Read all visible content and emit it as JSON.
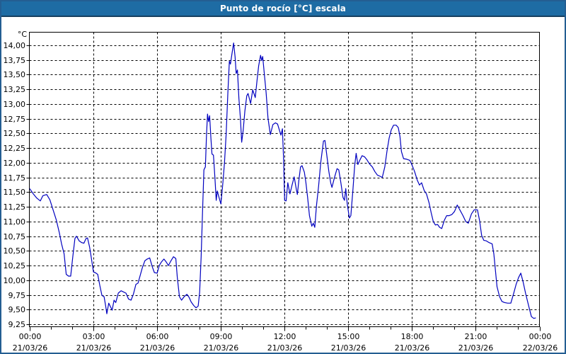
{
  "window": {
    "title": "Punto de rocío [°C] escala"
  },
  "colors": {
    "titlebar_bg": "#1e6ca4",
    "titlebar_text": "#ffffff",
    "window_border": "#245e92",
    "plot_border": "#000000",
    "gridline": "#000000",
    "series_line": "#0000bf",
    "label_text": "#000000",
    "background": "#ffffff"
  },
  "chart_data": {
    "type": "line",
    "title": "Punto de rocío [°C] escala",
    "unit_label": "°C",
    "grid": "dashed",
    "legend": "none",
    "ylim": [
      9.25,
      14.0
    ],
    "y_tick_step": 0.25,
    "y_ticks": [
      {
        "v": 14.0,
        "label": "14,00"
      },
      {
        "v": 13.75,
        "label": "13,75"
      },
      {
        "v": 13.5,
        "label": "13,50"
      },
      {
        "v": 13.25,
        "label": "13,25"
      },
      {
        "v": 13.0,
        "label": "13,00"
      },
      {
        "v": 12.75,
        "label": "12,75"
      },
      {
        "v": 12.5,
        "label": "12,50"
      },
      {
        "v": 12.25,
        "label": "12,25"
      },
      {
        "v": 12.0,
        "label": "12,00"
      },
      {
        "v": 11.75,
        "label": "11,75"
      },
      {
        "v": 11.5,
        "label": "11,50"
      },
      {
        "v": 11.25,
        "label": "11,25"
      },
      {
        "v": 11.0,
        "label": "11,00"
      },
      {
        "v": 10.75,
        "label": "10,75"
      },
      {
        "v": 10.5,
        "label": "10,50"
      },
      {
        "v": 10.25,
        "label": "10,25"
      },
      {
        "v": 10.0,
        "label": "10,00"
      },
      {
        "v": 9.75,
        "label": "9,75"
      },
      {
        "v": 9.5,
        "label": "9,50"
      },
      {
        "v": 9.25,
        "label": "9,25"
      }
    ],
    "x_range_hours": [
      0,
      24
    ],
    "x_minor_tick_hours": 1,
    "x_ticks": [
      {
        "h": 0,
        "time": "00:00",
        "date": "21/03/26"
      },
      {
        "h": 3,
        "time": "03:00",
        "date": "21/03/26"
      },
      {
        "h": 6,
        "time": "06:00",
        "date": "21/03/26"
      },
      {
        "h": 9,
        "time": "09:00",
        "date": "21/03/26"
      },
      {
        "h": 12,
        "time": "12:00",
        "date": "21/03/26"
      },
      {
        "h": 15,
        "time": "15:00",
        "date": "21/03/26"
      },
      {
        "h": 18,
        "time": "18:00",
        "date": "21/03/26"
      },
      {
        "h": 21,
        "time": "21:00",
        "date": "21/03/26"
      },
      {
        "h": 24,
        "time": "00:00",
        "date": "22/03/26"
      }
    ],
    "series": [
      {
        "name": "Punto de rocío",
        "color": "#0000bf",
        "points": [
          [
            0,
            11.56
          ],
          [
            0.17,
            11.47
          ],
          [
            0.33,
            11.4
          ],
          [
            0.5,
            11.35
          ],
          [
            0.62,
            11.44
          ],
          [
            0.8,
            11.46
          ],
          [
            0.95,
            11.37
          ],
          [
            1.1,
            11.2
          ],
          [
            1.25,
            11.03
          ],
          [
            1.4,
            10.8
          ],
          [
            1.5,
            10.62
          ],
          [
            1.62,
            10.45
          ],
          [
            1.72,
            10.1
          ],
          [
            1.83,
            10.07
          ],
          [
            1.93,
            10.07
          ],
          [
            2.03,
            10.4
          ],
          [
            2.13,
            10.71
          ],
          [
            2.2,
            10.75
          ],
          [
            2.33,
            10.67
          ],
          [
            2.45,
            10.64
          ],
          [
            2.55,
            10.63
          ],
          [
            2.65,
            10.71
          ],
          [
            2.72,
            10.72
          ],
          [
            2.82,
            10.56
          ],
          [
            2.9,
            10.38
          ],
          [
            3,
            10.14
          ],
          [
            3.08,
            10.13
          ],
          [
            3.2,
            10.1
          ],
          [
            3.3,
            9.91
          ],
          [
            3.4,
            9.74
          ],
          [
            3.5,
            9.72
          ],
          [
            3.58,
            9.55
          ],
          [
            3.63,
            9.43
          ],
          [
            3.72,
            9.61
          ],
          [
            3.8,
            9.55
          ],
          [
            3.88,
            9.49
          ],
          [
            3.97,
            9.66
          ],
          [
            4.05,
            9.62
          ],
          [
            4.17,
            9.78
          ],
          [
            4.3,
            9.82
          ],
          [
            4.42,
            9.8
          ],
          [
            4.53,
            9.78
          ],
          [
            4.65,
            9.68
          ],
          [
            4.77,
            9.66
          ],
          [
            4.88,
            9.76
          ],
          [
            5,
            9.93
          ],
          [
            5.1,
            9.95
          ],
          [
            5.2,
            10.08
          ],
          [
            5.3,
            10.21
          ],
          [
            5.42,
            10.33
          ],
          [
            5.53,
            10.36
          ],
          [
            5.65,
            10.38
          ],
          [
            5.77,
            10.23
          ],
          [
            5.87,
            10.13
          ],
          [
            6,
            10.12
          ],
          [
            6.1,
            10.25
          ],
          [
            6.2,
            10.31
          ],
          [
            6.32,
            10.36
          ],
          [
            6.43,
            10.31
          ],
          [
            6.53,
            10.25
          ],
          [
            6.65,
            10.33
          ],
          [
            6.77,
            10.4
          ],
          [
            6.88,
            10.37
          ],
          [
            6.95,
            10.05
          ],
          [
            7.05,
            9.72
          ],
          [
            7.15,
            9.66
          ],
          [
            7.27,
            9.72
          ],
          [
            7.4,
            9.76
          ],
          [
            7.5,
            9.71
          ],
          [
            7.6,
            9.63
          ],
          [
            7.72,
            9.57
          ],
          [
            7.83,
            9.53
          ],
          [
            7.93,
            9.56
          ],
          [
            8,
            9.8
          ],
          [
            8.07,
            10.4
          ],
          [
            8.13,
            11.1
          ],
          [
            8.2,
            11.88
          ],
          [
            8.27,
            11.93
          ],
          [
            8.32,
            12.45
          ],
          [
            8.37,
            12.83
          ],
          [
            8.42,
            12.7
          ],
          [
            8.47,
            12.8
          ],
          [
            8.53,
            12.42
          ],
          [
            8.58,
            12.15
          ],
          [
            8.65,
            12.13
          ],
          [
            8.72,
            11.74
          ],
          [
            8.78,
            11.36
          ],
          [
            8.83,
            11.52
          ],
          [
            8.92,
            11.4
          ],
          [
            9,
            11.3
          ],
          [
            9.08,
            11.6
          ],
          [
            9.17,
            12
          ],
          [
            9.25,
            12.5
          ],
          [
            9.33,
            13.2
          ],
          [
            9.4,
            13.73
          ],
          [
            9.45,
            13.68
          ],
          [
            9.52,
            13.85
          ],
          [
            9.6,
            14.04
          ],
          [
            9.67,
            13.8
          ],
          [
            9.72,
            13.52
          ],
          [
            9.78,
            13.58
          ],
          [
            9.85,
            13.09
          ],
          [
            9.92,
            12.76
          ],
          [
            9.98,
            12.35
          ],
          [
            10.05,
            12.55
          ],
          [
            10.13,
            12.88
          ],
          [
            10.22,
            13.14
          ],
          [
            10.28,
            13.18
          ],
          [
            10.4,
            13.01
          ],
          [
            10.5,
            13.24
          ],
          [
            10.62,
            13.11
          ],
          [
            10.7,
            13.39
          ],
          [
            10.78,
            13.65
          ],
          [
            10.87,
            13.83
          ],
          [
            10.92,
            13.74
          ],
          [
            10.97,
            13.81
          ],
          [
            11.05,
            13.5
          ],
          [
            11.13,
            13.2
          ],
          [
            11.22,
            12.76
          ],
          [
            11.33,
            12.48
          ],
          [
            11.45,
            12.65
          ],
          [
            11.57,
            12.68
          ],
          [
            11.67,
            12.66
          ],
          [
            11.77,
            12.54
          ],
          [
            11.83,
            12.47
          ],
          [
            11.9,
            12.58
          ],
          [
            11.95,
            12.1
          ],
          [
            12,
            11.36
          ],
          [
            12.07,
            11.35
          ],
          [
            12.15,
            11.66
          ],
          [
            12.25,
            11.47
          ],
          [
            12.35,
            11.62
          ],
          [
            12.45,
            11.76
          ],
          [
            12.55,
            11.55
          ],
          [
            12.6,
            11.46
          ],
          [
            12.67,
            11.7
          ],
          [
            12.75,
            11.93
          ],
          [
            12.82,
            11.95
          ],
          [
            12.93,
            11.84
          ],
          [
            13,
            11.67
          ],
          [
            13.08,
            11.42
          ],
          [
            13.17,
            11.1
          ],
          [
            13.28,
            10.92
          ],
          [
            13.35,
            10.97
          ],
          [
            13.42,
            10.9
          ],
          [
            13.5,
            11.27
          ],
          [
            13.6,
            11.6
          ],
          [
            13.7,
            12
          ],
          [
            13.83,
            12.37
          ],
          [
            13.9,
            12.38
          ],
          [
            13.98,
            12.15
          ],
          [
            14.08,
            11.86
          ],
          [
            14.17,
            11.66
          ],
          [
            14.23,
            11.58
          ],
          [
            14.35,
            11.75
          ],
          [
            14.47,
            11.9
          ],
          [
            14.55,
            11.88
          ],
          [
            14.65,
            11.66
          ],
          [
            14.75,
            11.41
          ],
          [
            14.82,
            11.36
          ],
          [
            14.88,
            11.56
          ],
          [
            14.95,
            11.3
          ],
          [
            15.05,
            11.06
          ],
          [
            15.12,
            11.1
          ],
          [
            15.22,
            11.55
          ],
          [
            15.3,
            11.95
          ],
          [
            15.37,
            12.16
          ],
          [
            15.45,
            11.97
          ],
          [
            15.55,
            12.05
          ],
          [
            15.65,
            12.12
          ],
          [
            15.77,
            12.1
          ],
          [
            15.88,
            12.05
          ],
          [
            16,
            11.98
          ],
          [
            16.13,
            11.93
          ],
          [
            16.25,
            11.85
          ],
          [
            16.37,
            11.79
          ],
          [
            16.5,
            11.77
          ],
          [
            16.6,
            11.75
          ],
          [
            16.72,
            11.93
          ],
          [
            16.82,
            12.2
          ],
          [
            16.92,
            12.42
          ],
          [
            17.02,
            12.56
          ],
          [
            17.13,
            12.64
          ],
          [
            17.25,
            12.64
          ],
          [
            17.35,
            12.6
          ],
          [
            17.43,
            12.45
          ],
          [
            17.5,
            12.19
          ],
          [
            17.6,
            12.07
          ],
          [
            17.75,
            12.06
          ],
          [
            17.9,
            12.04
          ],
          [
            18,
            11.96
          ],
          [
            18.12,
            11.85
          ],
          [
            18.25,
            11.7
          ],
          [
            18.35,
            11.62
          ],
          [
            18.45,
            11.66
          ],
          [
            18.57,
            11.53
          ],
          [
            18.68,
            11.47
          ],
          [
            18.8,
            11.32
          ],
          [
            18.9,
            11.15
          ],
          [
            19,
            11
          ],
          [
            19.1,
            10.94
          ],
          [
            19.2,
            10.95
          ],
          [
            19.3,
            10.9
          ],
          [
            19.4,
            10.88
          ],
          [
            19.52,
            11.02
          ],
          [
            19.63,
            11.1
          ],
          [
            19.75,
            11.1
          ],
          [
            19.88,
            11.12
          ],
          [
            20,
            11.17
          ],
          [
            20.13,
            11.28
          ],
          [
            20.25,
            11.2
          ],
          [
            20.4,
            11.1
          ],
          [
            20.53,
            11
          ],
          [
            20.65,
            10.97
          ],
          [
            20.8,
            11.13
          ],
          [
            20.93,
            11.2
          ],
          [
            21.08,
            11.2
          ],
          [
            21.18,
            11.02
          ],
          [
            21.28,
            10.76
          ],
          [
            21.38,
            10.68
          ],
          [
            21.5,
            10.67
          ],
          [
            21.63,
            10.64
          ],
          [
            21.77,
            10.62
          ],
          [
            21.85,
            10.45
          ],
          [
            21.93,
            10.15
          ],
          [
            22,
            9.89
          ],
          [
            22.12,
            9.72
          ],
          [
            22.23,
            9.64
          ],
          [
            22.35,
            9.62
          ],
          [
            22.5,
            9.61
          ],
          [
            22.65,
            9.61
          ],
          [
            22.78,
            9.77
          ],
          [
            22.9,
            9.93
          ],
          [
            23.02,
            10.05
          ],
          [
            23.12,
            10.12
          ],
          [
            23.23,
            9.97
          ],
          [
            23.35,
            9.77
          ],
          [
            23.5,
            9.55
          ],
          [
            23.62,
            9.38
          ],
          [
            23.73,
            9.35
          ],
          [
            23.83,
            9.36
          ]
        ]
      }
    ]
  }
}
